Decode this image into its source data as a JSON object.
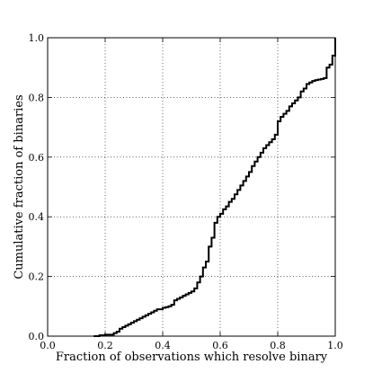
{
  "chart_data": {
    "type": "line",
    "title": "",
    "xlabel": "Fraction of observations which resolve binary",
    "ylabel": "Cumulative fraction of binaries",
    "xlim": [
      0.0,
      1.0
    ],
    "ylim": [
      0.0,
      1.0
    ],
    "grid": true,
    "grid_style": "dotted",
    "line_color": "#000000",
    "xticks": [
      "0.0",
      "0.2",
      "0.4",
      "0.6",
      "0.8",
      "1.0"
    ],
    "yticks": [
      "0.0",
      "0.2",
      "0.4",
      "0.6",
      "0.8",
      "1.0"
    ],
    "series": [
      {
        "step": "post",
        "x": [
          0.16,
          0.18,
          0.2,
          0.23,
          0.24,
          0.25,
          0.26,
          0.27,
          0.28,
          0.29,
          0.3,
          0.31,
          0.32,
          0.33,
          0.34,
          0.35,
          0.36,
          0.37,
          0.38,
          0.4,
          0.41,
          0.42,
          0.43,
          0.44,
          0.45,
          0.46,
          0.47,
          0.48,
          0.49,
          0.5,
          0.51,
          0.52,
          0.53,
          0.54,
          0.55,
          0.56,
          0.57,
          0.58,
          0.59,
          0.6,
          0.61,
          0.62,
          0.63,
          0.64,
          0.65,
          0.66,
          0.67,
          0.68,
          0.69,
          0.7,
          0.71,
          0.72,
          0.73,
          0.74,
          0.75,
          0.76,
          0.77,
          0.78,
          0.79,
          0.8,
          0.81,
          0.82,
          0.83,
          0.84,
          0.85,
          0.86,
          0.87,
          0.88,
          0.89,
          0.9,
          0.91,
          0.92,
          0.93,
          0.94,
          0.95,
          0.96,
          0.97,
          0.98,
          0.99,
          1.0
        ],
        "y": [
          0.0,
          0.003,
          0.005,
          0.01,
          0.015,
          0.025,
          0.03,
          0.035,
          0.04,
          0.045,
          0.05,
          0.055,
          0.06,
          0.065,
          0.07,
          0.075,
          0.08,
          0.085,
          0.09,
          0.095,
          0.097,
          0.1,
          0.105,
          0.12,
          0.125,
          0.13,
          0.135,
          0.14,
          0.145,
          0.15,
          0.16,
          0.18,
          0.2,
          0.23,
          0.25,
          0.3,
          0.33,
          0.38,
          0.4,
          0.41,
          0.425,
          0.435,
          0.45,
          0.46,
          0.475,
          0.49,
          0.505,
          0.52,
          0.535,
          0.55,
          0.57,
          0.585,
          0.6,
          0.615,
          0.63,
          0.64,
          0.65,
          0.66,
          0.675,
          0.72,
          0.735,
          0.745,
          0.755,
          0.77,
          0.78,
          0.79,
          0.8,
          0.82,
          0.83,
          0.845,
          0.85,
          0.855,
          0.858,
          0.86,
          0.862,
          0.865,
          0.9,
          0.91,
          0.94,
          1.0
        ]
      }
    ]
  }
}
